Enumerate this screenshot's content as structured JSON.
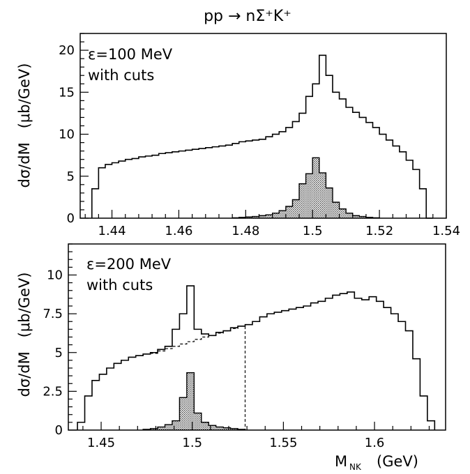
{
  "title": "pp → nΣ⁺K⁺",
  "colors": {
    "stroke": "#000000",
    "fill": "#9a9a9a",
    "background": "#ffffff"
  },
  "chart_data": [
    {
      "type": "histogram",
      "annotation_line1": "ε=100 MeV",
      "annotation_line2": "with cuts",
      "ylabel": "dσ/dM   (μb/GeV)",
      "xlabel": "",
      "xlim": [
        1.4305,
        1.54
      ],
      "ylim": [
        0,
        22
      ],
      "x_ticks": [
        1.44,
        1.46,
        1.48,
        1.5,
        1.52,
        1.54
      ],
      "x_tick_labels": [
        "1.44",
        "1.46",
        "1.48",
        "1.5",
        "1.52",
        "1.54"
      ],
      "y_ticks": [
        0,
        5,
        10,
        15,
        20
      ],
      "y_tick_labels": [
        "0",
        "5",
        "10",
        "15",
        "20"
      ],
      "grid": false,
      "series": [
        {
          "role": "total",
          "bin_edges": [
            1.434,
            1.436,
            1.438,
            1.44,
            1.442,
            1.444,
            1.446,
            1.448,
            1.45,
            1.452,
            1.454,
            1.456,
            1.458,
            1.46,
            1.462,
            1.464,
            1.466,
            1.468,
            1.47,
            1.472,
            1.474,
            1.476,
            1.478,
            1.48,
            1.482,
            1.484,
            1.486,
            1.488,
            1.49,
            1.492,
            1.494,
            1.496,
            1.498,
            1.5,
            1.502,
            1.504,
            1.506,
            1.508,
            1.51,
            1.512,
            1.514,
            1.516,
            1.518,
            1.52,
            1.522,
            1.524,
            1.526,
            1.528,
            1.53,
            1.532,
            1.534,
            1.536
          ],
          "values": [
            3.5,
            6.0,
            6.4,
            6.6,
            6.8,
            7.0,
            7.1,
            7.3,
            7.4,
            7.5,
            7.7,
            7.8,
            7.9,
            8.0,
            8.1,
            8.2,
            8.3,
            8.4,
            8.5,
            8.6,
            8.7,
            8.9,
            9.1,
            9.2,
            9.3,
            9.4,
            9.7,
            10.0,
            10.3,
            10.8,
            11.5,
            12.5,
            14.5,
            16.0,
            19.4,
            17.0,
            15.0,
            14.2,
            13.2,
            12.6,
            12.0,
            11.4,
            10.8,
            10.0,
            9.3,
            8.6,
            7.9,
            6.9,
            5.8,
            3.5,
            0
          ]
        },
        {
          "role": "shaded-peak",
          "bin_edges": [
            1.476,
            1.478,
            1.48,
            1.482,
            1.484,
            1.486,
            1.488,
            1.49,
            1.492,
            1.494,
            1.496,
            1.498,
            1.5,
            1.502,
            1.504,
            1.506,
            1.508,
            1.51,
            1.512,
            1.514,
            1.516,
            1.518,
            1.52
          ],
          "values": [
            0.05,
            0.1,
            0.15,
            0.2,
            0.3,
            0.4,
            0.6,
            0.9,
            1.4,
            2.2,
            4.1,
            5.3,
            7.2,
            5.4,
            3.6,
            1.9,
            1.1,
            0.6,
            0.3,
            0.2,
            0.1,
            0.05
          ]
        }
      ]
    },
    {
      "type": "histogram",
      "annotation_line1": "ε=200 MeV",
      "annotation_line2": "with cuts",
      "ylabel": "dσ/dM   (μb/GeV)",
      "xlabel": "Mₙₖ   (GeV)",
      "xlabel_main": "M",
      "xlabel_sub": "NK",
      "xlabel_unit": "(GeV)",
      "xlim": [
        1.432,
        1.639
      ],
      "ylim": [
        0,
        12
      ],
      "x_ticks": [
        1.45,
        1.5,
        1.55,
        1.6
      ],
      "x_tick_labels": [
        "1.45",
        "1.5",
        "1.55",
        "1.6"
      ],
      "y_ticks": [
        0,
        2.5,
        5,
        7.5,
        10
      ],
      "y_tick_labels": [
        "0",
        "2.5",
        "5",
        "7.5",
        "10"
      ],
      "grid": false,
      "series": [
        {
          "role": "total",
          "bin_edges": [
            1.437,
            1.441,
            1.445,
            1.449,
            1.453,
            1.457,
            1.461,
            1.465,
            1.469,
            1.473,
            1.477,
            1.481,
            1.485,
            1.489,
            1.493,
            1.497,
            1.501,
            1.505,
            1.509,
            1.513,
            1.517,
            1.521,
            1.525,
            1.529,
            1.533,
            1.537,
            1.541,
            1.545,
            1.549,
            1.553,
            1.557,
            1.561,
            1.565,
            1.569,
            1.573,
            1.577,
            1.581,
            1.585,
            1.589,
            1.593,
            1.597,
            1.601,
            1.605,
            1.609,
            1.613,
            1.617,
            1.621,
            1.625,
            1.629,
            1.633
          ],
          "values": [
            0.5,
            2.2,
            3.2,
            3.6,
            4.0,
            4.3,
            4.5,
            4.7,
            4.8,
            4.9,
            5.0,
            5.2,
            5.4,
            6.5,
            7.5,
            9.3,
            6.5,
            6.2,
            6.1,
            6.3,
            6.4,
            6.6,
            6.7,
            6.8,
            7.0,
            7.3,
            7.5,
            7.6,
            7.7,
            7.8,
            7.9,
            8.0,
            8.2,
            8.3,
            8.5,
            8.7,
            8.8,
            8.9,
            8.5,
            8.4,
            8.6,
            8.3,
            7.9,
            7.5,
            7.0,
            6.4,
            4.6,
            2.2,
            0.6
          ]
        },
        {
          "role": "dashed-background",
          "bin_edges": [
            1.477,
            1.481,
            1.485,
            1.489,
            1.493,
            1.497,
            1.501,
            1.505,
            1.509,
            1.513,
            1.517,
            1.521,
            1.525,
            1.529
          ],
          "values": [
            4.95,
            5.1,
            5.25,
            5.4,
            5.55,
            5.7,
            5.85,
            6.0,
            6.1,
            6.25,
            6.4,
            6.55,
            6.7
          ]
        },
        {
          "role": "shaded-peak",
          "bin_edges": [
            1.473,
            1.477,
            1.481,
            1.485,
            1.489,
            1.493,
            1.497,
            1.501,
            1.505,
            1.509,
            1.513,
            1.517,
            1.521,
            1.525,
            1.529
          ],
          "values": [
            0.05,
            0.1,
            0.2,
            0.35,
            0.6,
            2.1,
            3.7,
            1.1,
            0.5,
            0.3,
            0.2,
            0.15,
            0.1,
            0.05
          ]
        }
      ]
    }
  ]
}
